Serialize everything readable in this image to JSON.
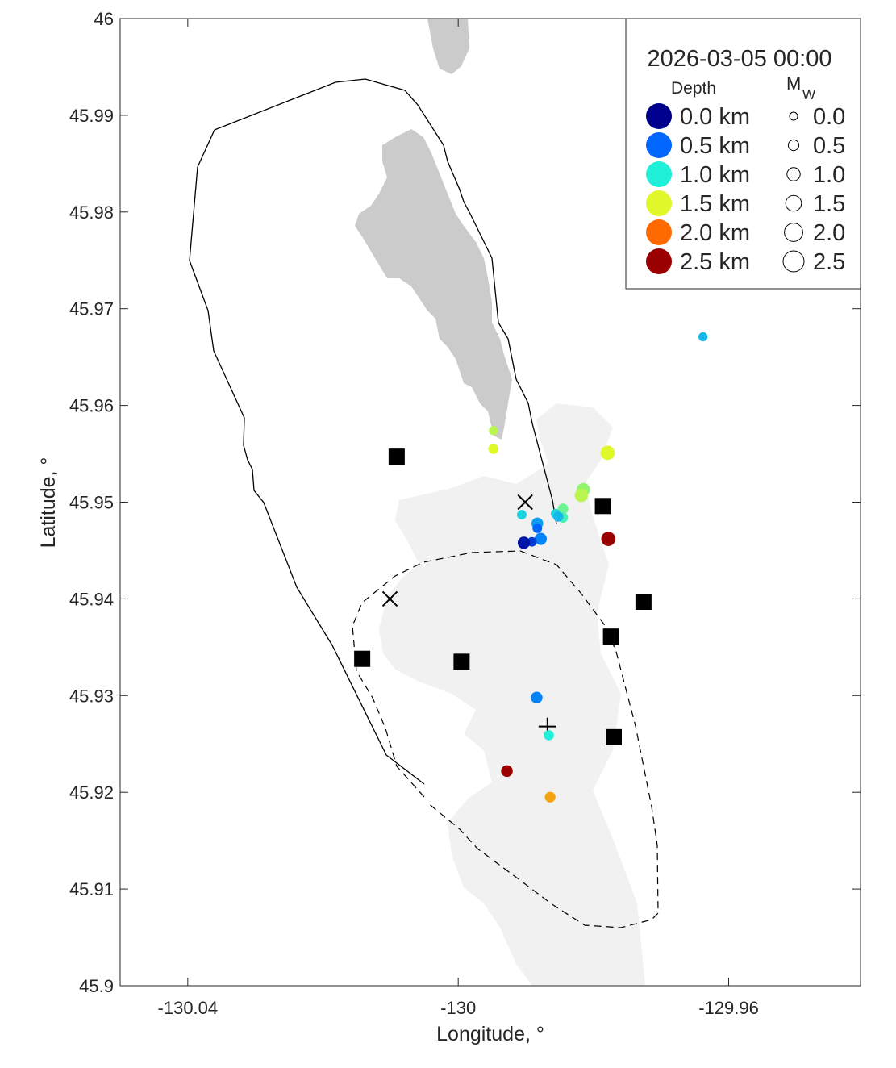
{
  "chart_data": {
    "type": "scatter",
    "title": "",
    "xlabel": "Longitude, °",
    "ylabel": "Latitude, °",
    "xlim": [
      -130.05,
      -129.9405
    ],
    "ylim": [
      45.9,
      46.0
    ],
    "xticks": [
      {
        "value": -130.04,
        "label": "-130.04"
      },
      {
        "value": -130.0,
        "label": "-130"
      },
      {
        "value": -129.96,
        "label": "-129.96"
      }
    ],
    "yticks": [
      {
        "value": 45.9,
        "label": "45.9"
      },
      {
        "value": 45.91,
        "label": "45.91"
      },
      {
        "value": 45.92,
        "label": "45.92"
      },
      {
        "value": 45.93,
        "label": "45.93"
      },
      {
        "value": 45.94,
        "label": "45.94"
      },
      {
        "value": 45.95,
        "label": "45.95"
      },
      {
        "value": 45.96,
        "label": "45.96"
      },
      {
        "value": 45.97,
        "label": "45.97"
      },
      {
        "value": 45.98,
        "label": "45.98"
      },
      {
        "value": 45.99,
        "label": "45.99"
      },
      {
        "value": 46.0,
        "label": "46"
      }
    ],
    "grid": false,
    "legend": {
      "placement": "top-right",
      "title": "2026-03-05 00:00",
      "depth_header": "Depth",
      "mw_header": "M",
      "mw_header_sub": "W",
      "depth_entries": [
        {
          "label": "0.0 km",
          "color": "#00008f"
        },
        {
          "label": "0.5 km",
          "color": "#0066ff"
        },
        {
          "label": "1.0 km",
          "color": "#20f0d8"
        },
        {
          "label": "1.5 km",
          "color": "#e0f72a"
        },
        {
          "label": "2.0 km",
          "color": "#ff6a00"
        },
        {
          "label": "2.5 km",
          "color": "#9a0000"
        }
      ],
      "mw_entries": [
        {
          "label": "0.0",
          "mw": 0.0
        },
        {
          "label": "0.5",
          "mw": 0.5
        },
        {
          "label": "1.0",
          "mw": 1.0
        },
        {
          "label": "1.5",
          "mw": 1.5
        },
        {
          "label": "2.0",
          "mw": 2.0
        },
        {
          "label": "2.5",
          "mw": 2.5
        }
      ]
    },
    "earthquakes": [
      {
        "lon": -129.9948,
        "lat": 45.9574,
        "depth_km": 1.4,
        "mw": 0.2
      },
      {
        "lon": -129.9948,
        "lat": 45.9555,
        "depth_km": 1.5,
        "mw": 0.4
      },
      {
        "lon": -129.9779,
        "lat": 45.9551,
        "depth_km": 1.5,
        "mw": 1.2
      },
      {
        "lon": -129.9815,
        "lat": 45.9513,
        "depth_km": 1.3,
        "mw": 1.0
      },
      {
        "lon": -129.9818,
        "lat": 45.9507,
        "depth_km": 1.4,
        "mw": 1.0
      },
      {
        "lon": -129.9845,
        "lat": 45.9493,
        "depth_km": 1.2,
        "mw": 0.5
      },
      {
        "lon": -129.9845,
        "lat": 45.9484,
        "depth_km": 1.1,
        "mw": 0.4
      },
      {
        "lon": -129.9856,
        "lat": 45.9488,
        "depth_km": 0.9,
        "mw": 0.3
      },
      {
        "lon": -129.9852,
        "lat": 45.9485,
        "depth_km": 0.8,
        "mw": 0.4
      },
      {
        "lon": -129.9906,
        "lat": 45.9487,
        "depth_km": 0.9,
        "mw": 0.3
      },
      {
        "lon": -129.9883,
        "lat": 45.9478,
        "depth_km": 0.7,
        "mw": 0.7
      },
      {
        "lon": -129.9883,
        "lat": 45.9473,
        "depth_km": 0.5,
        "mw": 0.3
      },
      {
        "lon": -129.9878,
        "lat": 45.9462,
        "depth_km": 0.6,
        "mw": 0.8
      },
      {
        "lon": -129.9891,
        "lat": 45.9459,
        "depth_km": 0.3,
        "mw": 0.3
      },
      {
        "lon": -129.9903,
        "lat": 45.9458,
        "depth_km": 0.1,
        "mw": 0.8
      },
      {
        "lon": -129.9778,
        "lat": 45.9462,
        "depth_km": 2.5,
        "mw": 1.2
      },
      {
        "lon": -129.9638,
        "lat": 45.9671,
        "depth_km": 0.8,
        "mw": 0.2
      },
      {
        "lon": -129.9884,
        "lat": 45.9298,
        "depth_km": 0.6,
        "mw": 0.7
      },
      {
        "lon": -129.9866,
        "lat": 45.9259,
        "depth_km": 1.0,
        "mw": 0.4
      },
      {
        "lon": -129.9928,
        "lat": 45.9222,
        "depth_km": 2.5,
        "mw": 0.7
      },
      {
        "lon": -129.9864,
        "lat": 45.9195,
        "depth_km": 1.8,
        "mw": 0.5
      }
    ],
    "stations": [
      {
        "lon": -130.0091,
        "lat": 45.9547
      },
      {
        "lon": -129.9786,
        "lat": 45.9496
      },
      {
        "lon": -129.9726,
        "lat": 45.9397
      },
      {
        "lon": -129.9774,
        "lat": 45.9361
      },
      {
        "lon": -130.0142,
        "lat": 45.9338
      },
      {
        "lon": -129.9995,
        "lat": 45.9335
      },
      {
        "lon": -129.977,
        "lat": 45.9257
      }
    ],
    "x_markers": [
      {
        "lon": -129.9901,
        "lat": 45.95
      },
      {
        "lon": -130.0101,
        "lat": 45.94
      }
    ],
    "plus_markers": [
      {
        "lon": -129.9868,
        "lat": 45.9268
      }
    ]
  }
}
